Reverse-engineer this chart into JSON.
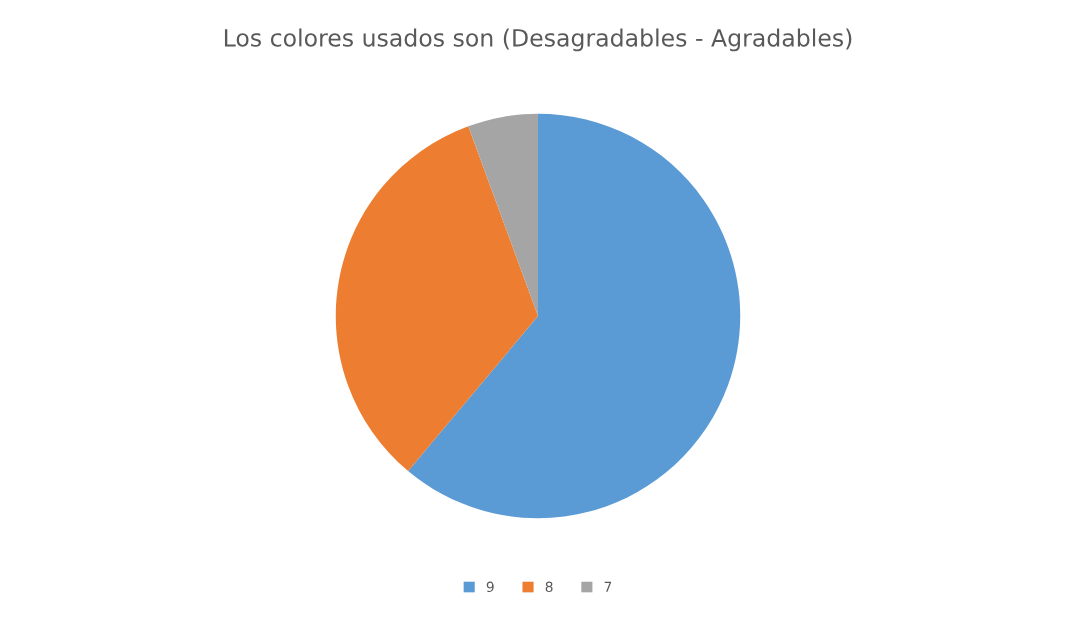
{
  "chart_data": {
    "type": "pie",
    "title": "Los colores usados son (Desagradables - Agradables)",
    "categories": [
      "9",
      "8",
      "7"
    ],
    "values": [
      61.1,
      33.3,
      5.6
    ],
    "colors": [
      "#5b9bd5",
      "#ed7d31",
      "#a5a5a5"
    ],
    "legend": "bottom"
  }
}
